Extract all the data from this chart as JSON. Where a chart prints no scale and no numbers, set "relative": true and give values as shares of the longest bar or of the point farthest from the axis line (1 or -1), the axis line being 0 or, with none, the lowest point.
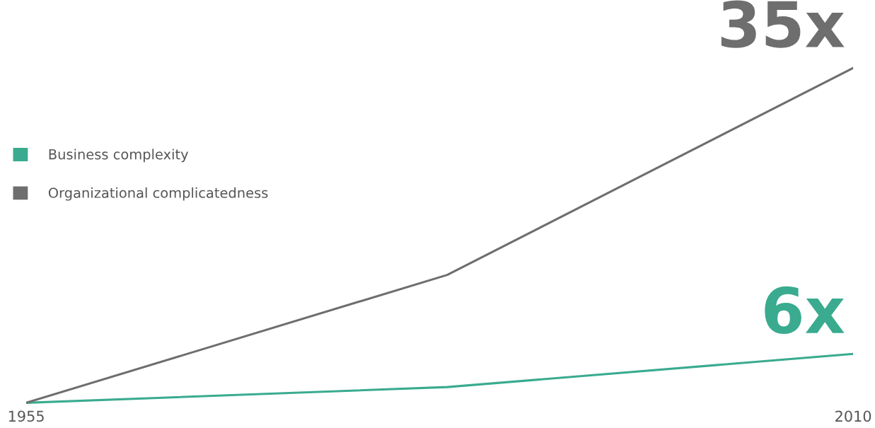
{
  "chart_data": {
    "type": "line",
    "relative": true,
    "x": [
      1955,
      1983,
      2010
    ],
    "xlim": [
      1955,
      2010
    ],
    "xticks": [
      1955,
      2010
    ],
    "series": [
      {
        "name": "Business complexity",
        "color": "#3aab8f",
        "values": [
          0,
          0.047,
          0.146
        ]
      },
      {
        "name": "Organizational complicatedness",
        "color": "#6e6e6e",
        "values": [
          0,
          0.382,
          1
        ]
      }
    ],
    "annotations": [
      {
        "text": "35x",
        "x": 2010,
        "y": 1
      },
      {
        "text": "6x",
        "x": 2010,
        "y": 0.146
      }
    ],
    "legend": "center left",
    "grid": false,
    "marker": "none",
    "line_style": "solid"
  }
}
